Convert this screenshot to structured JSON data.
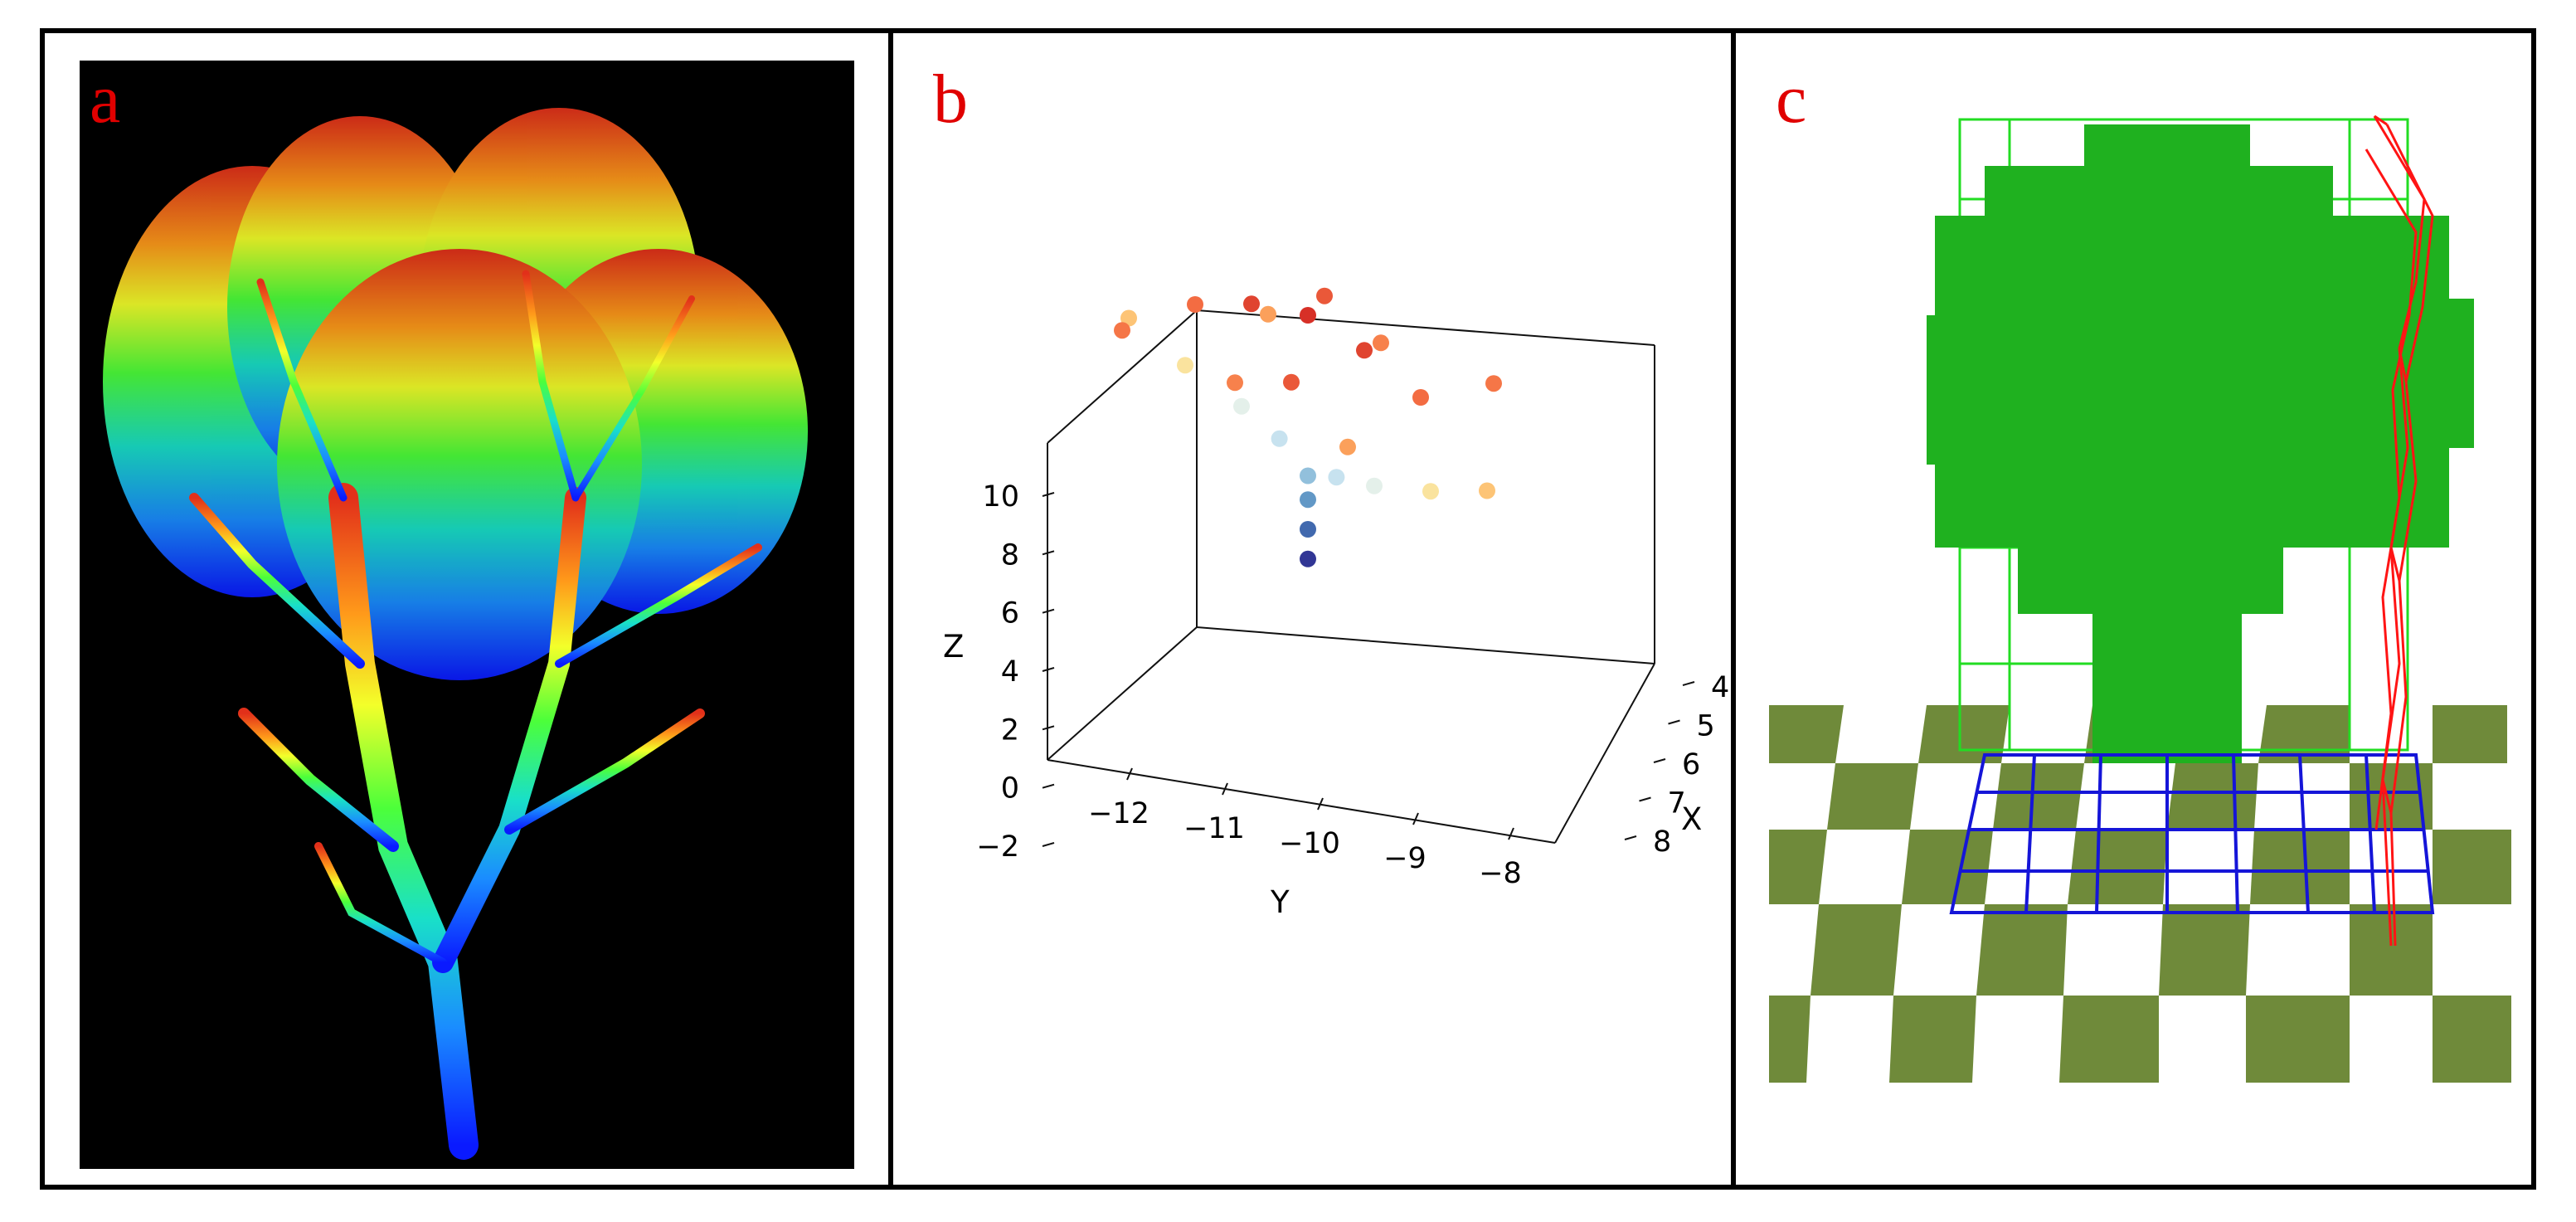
{
  "panels": [
    {
      "id": "a",
      "label": "a"
    },
    {
      "id": "b",
      "label": "b"
    },
    {
      "id": "c",
      "label": "c"
    }
  ],
  "chart_data": {
    "type": "scatter",
    "title": "",
    "projection": "3d",
    "xlabel": "X",
    "ylabel": "Y",
    "zlabel": "Z",
    "x_ticks": [
      "4",
      "5",
      "6",
      "7",
      "8"
    ],
    "y_ticks": [
      "−12",
      "−11",
      "−10",
      "−9",
      "−8"
    ],
    "z_ticks": [
      "−2",
      "0",
      "2",
      "4",
      "6",
      "8",
      "10"
    ],
    "xlim": [
      3.5,
      8.5
    ],
    "ylim": [
      -12.5,
      -7.5
    ],
    "zlim": [
      -2,
      10
    ],
    "colormap": "RdYlBu_r",
    "points": [
      {
        "x": 6,
        "y": -10,
        "z": 1.8
      },
      {
        "x": 6,
        "y": -10,
        "z": 2.8
      },
      {
        "x": 6,
        "y": -10,
        "z": 3.8
      },
      {
        "x": 6,
        "y": -10,
        "z": 4.6
      },
      {
        "x": 5.5,
        "y": -10.2,
        "z": 5.2
      },
      {
        "x": 6.5,
        "y": -9.8,
        "z": 5.2
      },
      {
        "x": 5,
        "y": -10.5,
        "z": 5.6
      },
      {
        "x": 7,
        "y": -9.5,
        "z": 5.6
      },
      {
        "x": 4.5,
        "y": -11,
        "z": 6.2
      },
      {
        "x": 7.5,
        "y": -9,
        "z": 6.2
      },
      {
        "x": 4,
        "y": -11.5,
        "z": 7
      },
      {
        "x": 8,
        "y": -8.5,
        "z": 7
      },
      {
        "x": 4,
        "y": -10,
        "z": 7.8
      },
      {
        "x": 8,
        "y": -10,
        "z": 7.8
      },
      {
        "x": 5,
        "y": -9,
        "z": 8.4
      },
      {
        "x": 7,
        "y": -11,
        "z": 8.4
      },
      {
        "x": 5,
        "y": -11,
        "z": 8.8
      },
      {
        "x": 7,
        "y": -9,
        "z": 8.8
      },
      {
        "x": 6,
        "y": -12,
        "z": 8.6
      },
      {
        "x": 6,
        "y": -8,
        "z": 8.6
      },
      {
        "x": 4.5,
        "y": -9.5,
        "z": 9.2
      },
      {
        "x": 7.5,
        "y": -10.5,
        "z": 9.2
      },
      {
        "x": 5.5,
        "y": -10.5,
        "z": 9.6
      },
      {
        "x": 6.5,
        "y": -9.5,
        "z": 9.6
      },
      {
        "x": 6,
        "y": -10,
        "z": 10
      }
    ]
  }
}
